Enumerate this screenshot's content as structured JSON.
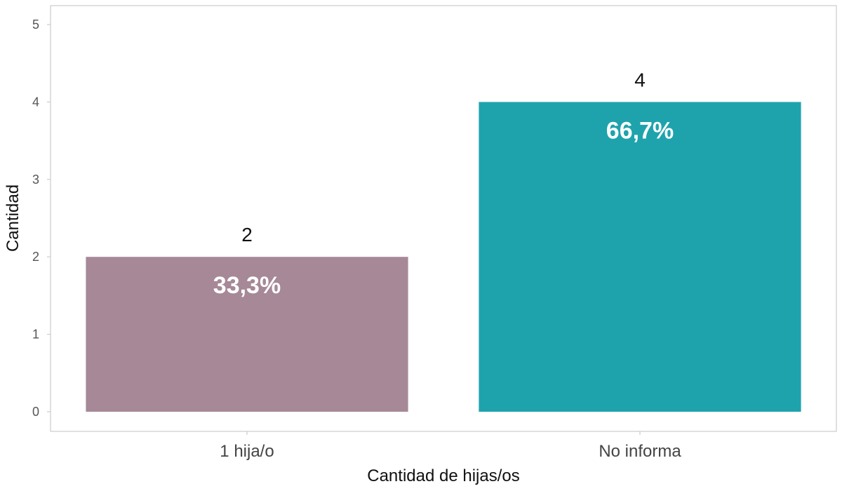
{
  "chart_data": {
    "type": "bar",
    "categories": [
      "1 hija/o",
      "No informa"
    ],
    "values": [
      2,
      4
    ],
    "percent_labels": [
      "33,3%",
      "66,7%"
    ],
    "colors": [
      "#a68897",
      "#1ea3ad"
    ],
    "xlabel": "Cantidad de hijas/os",
    "ylabel": "Cantidad",
    "ylim": [
      0,
      5
    ],
    "yticks": [
      "0",
      "1",
      "2",
      "3",
      "4",
      "5"
    ],
    "grid": false,
    "legend": "none"
  }
}
